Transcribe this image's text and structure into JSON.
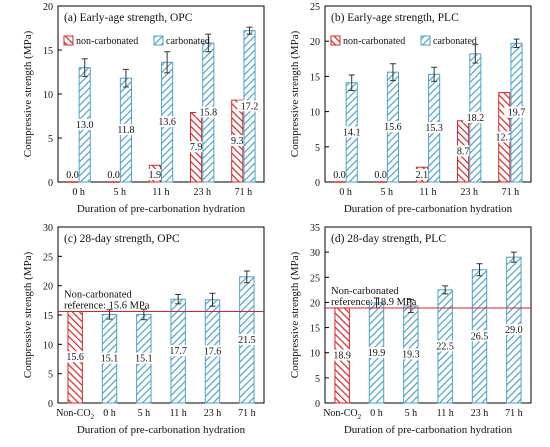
{
  "colors": {
    "noncarb": "#d62728",
    "carb": "#4fa3c7",
    "refline": "#d62728",
    "reftext": "#c0392b"
  },
  "chart_data": [
    {
      "type": "bar",
      "panel_label": "(a) Early-age strength, OPC",
      "xlabel": "Duration of pre-carbonation hydration",
      "ylabel": "Compressive strength (MPa)",
      "ylim": [
        0,
        20
      ],
      "yticks": [
        0,
        5,
        10,
        15,
        20
      ],
      "categories": [
        "0 h",
        "5 h",
        "11 h",
        "23 h",
        "71 h"
      ],
      "legend": [
        "non-carbonated",
        "carbonated"
      ],
      "series": [
        {
          "name": "non-carbonated",
          "values": [
            0.0,
            0.0,
            1.9,
            7.9,
            9.3
          ],
          "labels": [
            "0.0",
            "0.0",
            "1.9",
            "7.9",
            "9.3"
          ],
          "errors": [
            0,
            0,
            0,
            0,
            0
          ]
        },
        {
          "name": "carbonated",
          "values": [
            13.0,
            11.8,
            13.6,
            15.8,
            17.2
          ],
          "labels": [
            "13.0",
            "11.8",
            "13.6",
            "15.8",
            "17.2"
          ],
          "errors": [
            1.0,
            1.0,
            1.2,
            1.0,
            0.4
          ]
        }
      ]
    },
    {
      "type": "bar",
      "panel_label": "(b) Early-age strength, PLC",
      "xlabel": "Duration of pre-carbonation hydration",
      "ylabel": "Compressive strength (MPa)",
      "ylim": [
        0,
        25
      ],
      "yticks": [
        0,
        5,
        10,
        15,
        20,
        25
      ],
      "categories": [
        "0 h",
        "5 h",
        "11 h",
        "23 h",
        "71 h"
      ],
      "legend": [
        "non-carbonated",
        "carbonated"
      ],
      "series": [
        {
          "name": "non-carbonated",
          "values": [
            0.0,
            0.0,
            2.1,
            8.7,
            12.7
          ],
          "labels": [
            "0.0",
            "0.0",
            "2.1",
            "8.7",
            "12.7"
          ],
          "errors": [
            0,
            0,
            0,
            0,
            0
          ]
        },
        {
          "name": "carbonated",
          "values": [
            14.1,
            15.6,
            15.3,
            18.2,
            19.7
          ],
          "labels": [
            "14.1",
            "15.6",
            "15.3",
            "18.2",
            "19.7"
          ],
          "errors": [
            1.1,
            1.2,
            1.0,
            1.3,
            0.6
          ]
        }
      ]
    },
    {
      "type": "bar",
      "panel_label": "(c) 28-day strength, OPC",
      "xlabel": "Duration of pre-carbonation hydration",
      "ylabel": "Compressive strength (MPa)",
      "ylim": [
        0,
        30
      ],
      "yticks": [
        0,
        5,
        10,
        15,
        20,
        25,
        30
      ],
      "categories": [
        "Non-CO2",
        "0 h",
        "5 h",
        "11 h",
        "23 h",
        "71 h"
      ],
      "category_display": [
        {
          "main": "Non-CO",
          "sub": "2"
        },
        {
          "main": "0 h",
          "sub": ""
        },
        {
          "main": "5 h",
          "sub": ""
        },
        {
          "main": "11 h",
          "sub": ""
        },
        {
          "main": "23 h",
          "sub": ""
        },
        {
          "main": "71 h",
          "sub": ""
        }
      ],
      "bar_kinds": [
        "noncarb",
        "carb",
        "carb",
        "carb",
        "carb",
        "carb"
      ],
      "values": [
        15.6,
        15.1,
        15.1,
        17.7,
        17.6,
        21.5
      ],
      "labels": [
        "15.6",
        "15.1",
        "15.1",
        "17.7",
        "17.6",
        "21.5"
      ],
      "errors": [
        0,
        0.8,
        0.9,
        0.8,
        1.1,
        1.0
      ],
      "reference": {
        "value": 15.6,
        "lines": [
          "Non-carbonated",
          "reference: 15.6 MPa"
        ]
      }
    },
    {
      "type": "bar",
      "panel_label": "(d) 28-day strength, PLC",
      "xlabel": "Duration of pre-carbonation hydration",
      "ylabel": "Compressive strength (MPa)",
      "ylim": [
        0,
        35
      ],
      "yticks": [
        0,
        5,
        10,
        15,
        20,
        25,
        30,
        35
      ],
      "categories": [
        "Non-CO2",
        "0 h",
        "5 h",
        "11 h",
        "23 h",
        "71 h"
      ],
      "category_display": [
        {
          "main": "Non-CO",
          "sub": "2"
        },
        {
          "main": "0 h",
          "sub": ""
        },
        {
          "main": "5 h",
          "sub": ""
        },
        {
          "main": "11 h",
          "sub": ""
        },
        {
          "main": "23 h",
          "sub": ""
        },
        {
          "main": "71 h",
          "sub": ""
        }
      ],
      "bar_kinds": [
        "noncarb",
        "carb",
        "carb",
        "carb",
        "carb",
        "carb"
      ],
      "values": [
        18.9,
        19.9,
        19.3,
        22.5,
        26.5,
        29.0
      ],
      "labels": [
        "18.9",
        "19.9",
        "19.3",
        "22.5",
        "26.5",
        "29.0"
      ],
      "errors": [
        0,
        1.0,
        1.3,
        0.8,
        1.2,
        1.0
      ],
      "reference": {
        "value": 18.9,
        "lines": [
          "Non-carbonated",
          "reference: 18.9 MPa"
        ]
      }
    }
  ]
}
